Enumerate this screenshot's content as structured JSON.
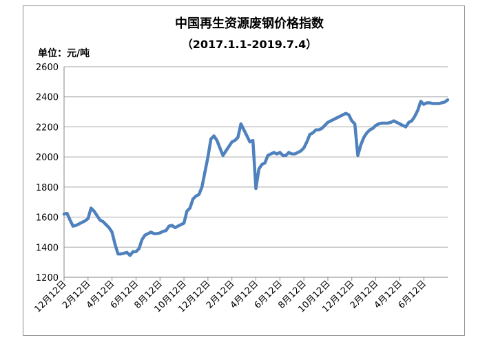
{
  "chart_data": {
    "type": "line",
    "title": "中国再生资源废钢价格指数",
    "subtitle": "（2017.1.1-2019.7.4）",
    "y_label": "单位：元/吨",
    "color": "#4f81bd",
    "grid": true,
    "ylim": [
      1200,
      2600
    ],
    "yticks": [
      1200,
      1400,
      1600,
      1800,
      2000,
      2200,
      2400,
      2600
    ],
    "categories": [
      "12月12日",
      null,
      null,
      null,
      null,
      null,
      null,
      null,
      "2月12日",
      null,
      null,
      null,
      null,
      null,
      null,
      null,
      "4月12日",
      null,
      null,
      null,
      null,
      null,
      null,
      null,
      "6月12日",
      null,
      null,
      null,
      null,
      null,
      null,
      null,
      "8月12日",
      null,
      null,
      null,
      null,
      null,
      null,
      null,
      "10月12日",
      null,
      null,
      null,
      null,
      null,
      null,
      null,
      "12月12日",
      null,
      null,
      null,
      null,
      null,
      null,
      null,
      "2月12日",
      null,
      null,
      null,
      null,
      null,
      null,
      null,
      "4月12日",
      null,
      null,
      null,
      null,
      null,
      null,
      null,
      "6月12日",
      null,
      null,
      null,
      null,
      null,
      null,
      null,
      "8月12日",
      null,
      null,
      null,
      null,
      null,
      null,
      null,
      "10月12日",
      null,
      null,
      null,
      null,
      null,
      null,
      null,
      "12月12日",
      null,
      null,
      null,
      null,
      null,
      null,
      null,
      "2月12日",
      null,
      null,
      null,
      null,
      null,
      null,
      null,
      "4月12日",
      null,
      null,
      null,
      null,
      null,
      null,
      null,
      "6月12日",
      null,
      null,
      null,
      null,
      null,
      null,
      null,
      null
    ],
    "values": [
      1620,
      1625,
      1580,
      1540,
      1545,
      1555,
      1565,
      1575,
      1590,
      1660,
      1640,
      1610,
      1580,
      1570,
      1550,
      1530,
      1500,
      1420,
      1355,
      1355,
      1360,
      1365,
      1345,
      1370,
      1370,
      1390,
      1450,
      1480,
      1490,
      1500,
      1490,
      1490,
      1495,
      1505,
      1510,
      1540,
      1545,
      1530,
      1540,
      1550,
      1560,
      1640,
      1660,
      1720,
      1740,
      1750,
      1800,
      1900,
      2000,
      2120,
      2140,
      2110,
      2060,
      2010,
      2040,
      2070,
      2100,
      2110,
      2130,
      2220,
      2180,
      2140,
      2100,
      2110,
      1790,
      1920,
      1950,
      1960,
      2010,
      2020,
      2030,
      2020,
      2030,
      2010,
      2010,
      2030,
      2020,
      2020,
      2030,
      2040,
      2060,
      2100,
      2150,
      2160,
      2180,
      2180,
      2190,
      2210,
      2230,
      2240,
      2250,
      2260,
      2270,
      2280,
      2290,
      2280,
      2240,
      2220,
      2010,
      2080,
      2130,
      2160,
      2180,
      2190,
      2210,
      2220,
      2225,
      2225,
      2225,
      2230,
      2240,
      2230,
      2220,
      2210,
      2200,
      2230,
      2240,
      2270,
      2310,
      2370,
      2350,
      2360,
      2360,
      2355,
      2355,
      2355,
      2360,
      2365,
      2380
    ]
  }
}
